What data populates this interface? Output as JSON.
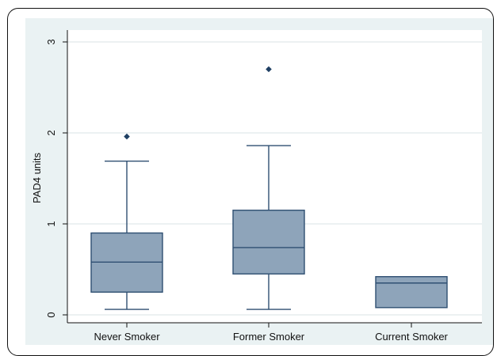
{
  "chart_data": {
    "type": "box",
    "ylabel": "PAD4 units",
    "xlabel": "",
    "ylim": [
      0,
      3
    ],
    "yticks": [
      0,
      1,
      2,
      3
    ],
    "grid": true,
    "categories": [
      "Never Smoker",
      "Former Smoker",
      "Current Smoker"
    ],
    "boxes": [
      {
        "category": "Never Smoker",
        "whisker_low": 0.06,
        "q1": 0.25,
        "median": 0.58,
        "q3": 0.9,
        "whisker_high": 1.69,
        "outliers": [
          1.96
        ]
      },
      {
        "category": "Former Smoker",
        "whisker_low": 0.06,
        "q1": 0.45,
        "median": 0.74,
        "q3": 1.15,
        "whisker_high": 1.86,
        "outliers": [
          2.7
        ]
      },
      {
        "category": "Current Smoker",
        "whisker_low": 0.08,
        "q1": 0.08,
        "median": 0.35,
        "q3": 0.42,
        "whisker_high": 0.42,
        "outliers": []
      }
    ],
    "colors": {
      "box_fill": "#8ea4ba",
      "box_stroke": "#2f4f72",
      "outlier": "#1f3f63",
      "grid": "#d8e3e6",
      "plot_bg": "#ffffff"
    }
  }
}
